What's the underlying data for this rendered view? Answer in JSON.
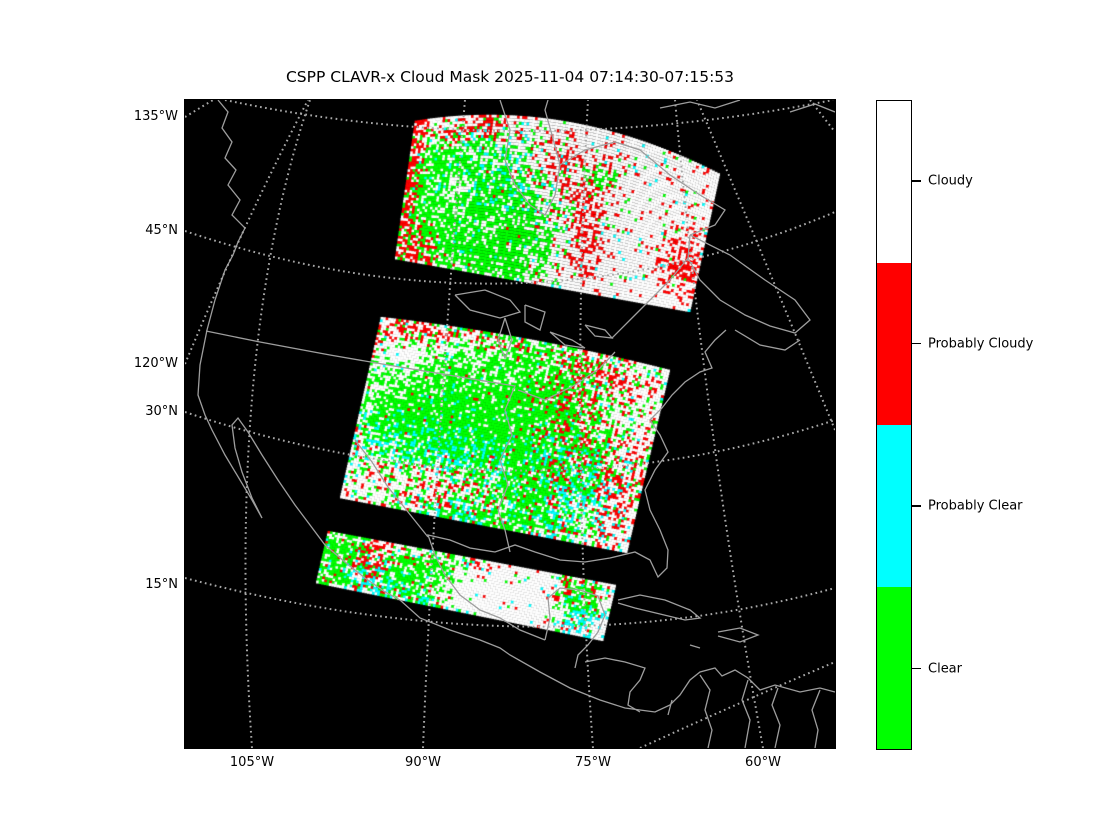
{
  "figure": {
    "title": "CSPP CLAVR-x Cloud Mask 2025-11-04 07:14:30-07:15:53",
    "background": "#ffffff"
  },
  "axes": {
    "left_ticks": [
      {
        "label": "135°W"
      },
      {
        "label": "45°N"
      },
      {
        "label": "120°W"
      },
      {
        "label": "30°N"
      },
      {
        "label": "15°N"
      }
    ],
    "bottom_ticks": [
      {
        "label": "105°W"
      },
      {
        "label": "90°W"
      },
      {
        "label": "75°W"
      },
      {
        "label": "60°W"
      }
    ]
  },
  "map": {
    "background": "#000000",
    "coastline_color": "#9e9e9e",
    "grid_color": "#a8a8a8"
  },
  "colorbar": {
    "entries": [
      {
        "label": "Cloudy",
        "color": "#ffffff"
      },
      {
        "label": "Probably Cloudy",
        "color": "#ff0000"
      },
      {
        "label": "Probably Clear",
        "color": "#00ffff"
      },
      {
        "label": "Clear",
        "color": "#00ff00"
      }
    ]
  },
  "chart_data": {
    "type": "map",
    "description": "Satellite cloud-mask swaths (3 granule segments) over a black North America map",
    "palette": {
      "w": "#ffffff",
      "r": "#ff0000",
      "c": "#00ffff",
      "g": "#00ff00"
    },
    "categories": [
      "Cloudy",
      "Probably Cloudy",
      "Probably Clear",
      "Clear"
    ],
    "swaths": [
      {
        "name": "north-granule",
        "corners": {
          "tl": [
            230,
            21
          ],
          "tr": [
            535,
            74
          ],
          "br": [
            505,
            212
          ],
          "bl": [
            210,
            159
          ]
        },
        "top_bulge": -26,
        "seed": 11,
        "base": {
          "w": 1.0,
          "r": 0.055,
          "c": 0.02,
          "g": 0.02
        },
        "patches": [
          {
            "k": "g",
            "cx": 0.2,
            "cy": 0.6,
            "rx": 0.16,
            "ry": 0.32,
            "a": 5.0
          },
          {
            "k": "g",
            "cx": 0.33,
            "cy": 0.78,
            "rx": 0.12,
            "ry": 0.22,
            "a": 4.0
          },
          {
            "k": "w",
            "cx": 0.17,
            "cy": 0.5,
            "rx": 0.05,
            "ry": 0.1,
            "a": 6.0
          },
          {
            "k": "w",
            "cx": 0.3,
            "cy": 0.7,
            "rx": 0.05,
            "ry": 0.08,
            "a": 5.0
          },
          {
            "k": "g",
            "cx": 0.1,
            "cy": 0.3,
            "rx": 0.06,
            "ry": 0.1,
            "a": 2.5
          },
          {
            "k": "r",
            "cx": 0.01,
            "cy": 0.5,
            "rx": 0.03,
            "ry": 0.55,
            "a": 3.0
          },
          {
            "k": "r",
            "cx": 0.07,
            "cy": 0.9,
            "rx": 0.06,
            "ry": 0.13,
            "a": 2.5
          },
          {
            "k": "r",
            "cx": 0.22,
            "cy": 0.08,
            "rx": 0.12,
            "ry": 0.07,
            "a": 1.1
          },
          {
            "k": "c",
            "cx": 0.24,
            "cy": 0.42,
            "rx": 0.14,
            "ry": 0.28,
            "a": 0.5
          },
          {
            "k": "r",
            "cx": 0.62,
            "cy": 0.66,
            "rx": 0.05,
            "ry": 0.26,
            "a": 1.0
          },
          {
            "k": "g",
            "cx": 0.63,
            "cy": 0.3,
            "rx": 0.04,
            "ry": 0.07,
            "a": 1.2
          },
          {
            "k": "r",
            "cx": 0.55,
            "cy": 0.3,
            "rx": 0.12,
            "ry": 0.18,
            "a": 0.45
          },
          {
            "k": "r",
            "cx": 0.94,
            "cy": 0.7,
            "rx": 0.05,
            "ry": 0.16,
            "a": 1.5
          }
        ]
      },
      {
        "name": "middle-granule",
        "corners": {
          "tl": [
            196,
            217
          ],
          "tr": [
            485,
            270
          ],
          "br": [
            442,
            453
          ],
          "bl": [
            155,
            398
          ]
        },
        "top_bulge": -5,
        "seed": 23,
        "base": {
          "w": 1.0,
          "r": 0.1,
          "c": 0.06,
          "g": 0.05
        },
        "patches": [
          {
            "k": "g",
            "cx": 0.45,
            "cy": 0.42,
            "rx": 0.3,
            "ry": 0.32,
            "a": 6.0
          },
          {
            "k": "g",
            "cx": 0.22,
            "cy": 0.5,
            "rx": 0.14,
            "ry": 0.18,
            "a": 3.5
          },
          {
            "k": "g",
            "cx": 0.62,
            "cy": 0.72,
            "rx": 0.14,
            "ry": 0.2,
            "a": 3.0
          },
          {
            "k": "w",
            "cx": 0.13,
            "cy": 0.16,
            "rx": 0.1,
            "ry": 0.12,
            "a": 5.0
          },
          {
            "k": "w",
            "cx": 0.32,
            "cy": 0.1,
            "rx": 0.1,
            "ry": 0.09,
            "a": 3.0
          },
          {
            "k": "r",
            "cx": 0.08,
            "cy": 0.06,
            "rx": 0.1,
            "ry": 0.06,
            "a": 2.5
          },
          {
            "k": "r",
            "cx": 0.32,
            "cy": 0.04,
            "rx": 0.2,
            "ry": 0.05,
            "a": 1.2
          },
          {
            "k": "c",
            "cx": 0.3,
            "cy": 0.62,
            "rx": 0.2,
            "ry": 0.12,
            "a": 2.6
          },
          {
            "k": "w",
            "cx": 0.32,
            "cy": 0.83,
            "rx": 0.18,
            "ry": 0.11,
            "a": 3.2
          },
          {
            "k": "r",
            "cx": 0.33,
            "cy": 0.85,
            "rx": 0.16,
            "ry": 0.1,
            "a": 1.3
          },
          {
            "k": "g",
            "cx": 0.52,
            "cy": 0.96,
            "rx": 0.22,
            "ry": 0.08,
            "a": 2.2
          },
          {
            "k": "c",
            "cx": 0.4,
            "cy": 0.95,
            "rx": 0.15,
            "ry": 0.07,
            "a": 1.4
          },
          {
            "k": "r",
            "cx": 0.7,
            "cy": 0.42,
            "rx": 0.1,
            "ry": 0.34,
            "a": 1.5
          },
          {
            "k": "c",
            "cx": 0.73,
            "cy": 0.7,
            "rx": 0.12,
            "ry": 0.22,
            "a": 1.4
          },
          {
            "k": "w",
            "cx": 0.92,
            "cy": 0.25,
            "rx": 0.09,
            "ry": 0.25,
            "a": 2.5
          },
          {
            "k": "r",
            "cx": 0.92,
            "cy": 0.6,
            "rx": 0.07,
            "ry": 0.3,
            "a": 0.9
          },
          {
            "k": "r",
            "cx": 0.84,
            "cy": 0.12,
            "rx": 0.1,
            "ry": 0.1,
            "a": 1.3
          },
          {
            "k": "c",
            "cx": 0.5,
            "cy": 0.58,
            "rx": 0.3,
            "ry": 0.28,
            "a": 0.3
          }
        ]
      },
      {
        "name": "south-granule",
        "corners": {
          "tl": [
            143,
            431
          ],
          "tr": [
            431,
            485
          ],
          "br": [
            418,
            541
          ],
          "bl": [
            131,
            483
          ]
        },
        "top_bulge": 0,
        "seed": 37,
        "base": {
          "w": 1.0,
          "r": 0.12,
          "c": 0.08,
          "g": 0.06
        },
        "patches": [
          {
            "k": "g",
            "cx": 0.06,
            "cy": 0.45,
            "rx": 0.07,
            "ry": 0.5,
            "a": 3.5
          },
          {
            "k": "r",
            "cx": 0.16,
            "cy": 0.35,
            "rx": 0.06,
            "ry": 0.32,
            "a": 1.6
          },
          {
            "k": "c",
            "cx": 0.13,
            "cy": 0.7,
            "rx": 0.07,
            "ry": 0.26,
            "a": 1.6
          },
          {
            "k": "g",
            "cx": 0.33,
            "cy": 0.62,
            "rx": 0.1,
            "ry": 0.38,
            "a": 3.2
          },
          {
            "k": "g",
            "cx": 0.43,
            "cy": 0.28,
            "rx": 0.06,
            "ry": 0.25,
            "a": 2.0
          },
          {
            "k": "c",
            "cx": 0.28,
            "cy": 0.85,
            "rx": 0.1,
            "ry": 0.16,
            "a": 1.5
          },
          {
            "k": "w",
            "cx": 0.6,
            "cy": 0.55,
            "rx": 0.14,
            "ry": 0.48,
            "a": 5.0
          },
          {
            "k": "w",
            "cx": 0.74,
            "cy": 0.6,
            "rx": 0.09,
            "ry": 0.42,
            "a": 4.0
          },
          {
            "k": "r",
            "cx": 0.52,
            "cy": 0.12,
            "rx": 0.1,
            "ry": 0.12,
            "a": 0.8
          },
          {
            "k": "g",
            "cx": 0.88,
            "cy": 0.4,
            "rx": 0.06,
            "ry": 0.32,
            "a": 2.2
          },
          {
            "k": "c",
            "cx": 0.9,
            "cy": 0.7,
            "rx": 0.06,
            "ry": 0.26,
            "a": 2.0
          },
          {
            "k": "r",
            "cx": 0.84,
            "cy": 0.25,
            "rx": 0.05,
            "ry": 0.22,
            "a": 1.5
          },
          {
            "k": "w",
            "cx": 0.97,
            "cy": 0.85,
            "rx": 0.05,
            "ry": 0.14,
            "a": 3.0
          }
        ]
      }
    ]
  }
}
